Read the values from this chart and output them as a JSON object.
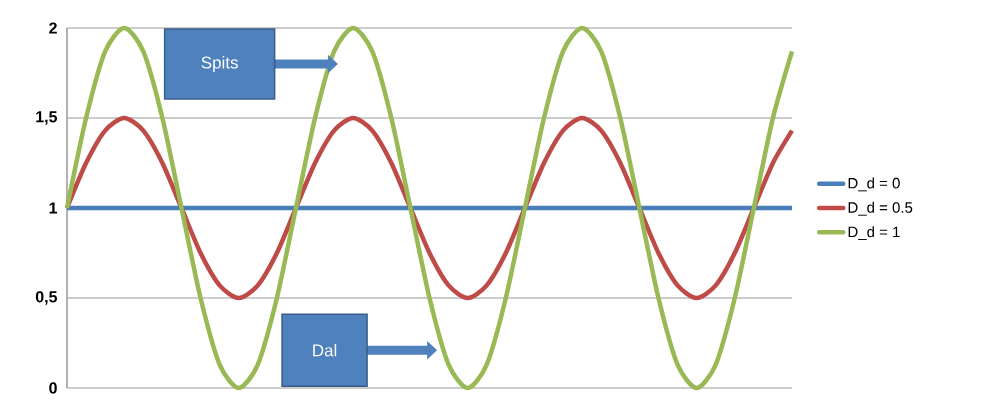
{
  "chart_data": {
    "type": "line",
    "categories": [
      null,
      null,
      null,
      null,
      null,
      null,
      null,
      null,
      null,
      null,
      null,
      null,
      null,
      null,
      null,
      null,
      null,
      null,
      null,
      null,
      null,
      null,
      null,
      null,
      null,
      null,
      null,
      null,
      null,
      null,
      null,
      null,
      null,
      null,
      null,
      null,
      null,
      null,
      null
    ],
    "ylim": [
      0,
      2
    ],
    "yticks": [
      0,
      {
        "value": 0.5,
        "label": "0,5"
      },
      1,
      {
        "value": 1.5,
        "label": "1,5"
      },
      2
    ],
    "grid": "y",
    "legend": "right",
    "marker": "none",
    "line_style": "solid",
    "tick_labels": "y",
    "annotations": [
      "Spits",
      "Dal"
    ],
    "series": [
      {
        "name": "D_d = 0",
        "color": "#4a7ebb",
        "values": [
          1,
          1,
          1,
          1,
          1,
          1,
          1,
          1,
          1,
          1,
          1,
          1,
          1,
          1,
          1,
          1,
          1,
          1,
          1,
          1,
          1,
          1,
          1,
          1,
          1,
          1,
          1,
          1,
          1,
          1,
          1,
          1,
          1,
          1,
          1,
          1,
          1,
          1,
          1
        ]
      },
      {
        "name": "D_d = 0.5",
        "color": "#be4b48",
        "values": [
          1,
          1.25,
          1.43,
          1.5,
          1.43,
          1.25,
          1,
          0.75,
          0.57,
          0.5,
          0.57,
          0.75,
          1,
          1.25,
          1.43,
          1.5,
          1.43,
          1.25,
          1,
          0.75,
          0.57,
          0.5,
          0.57,
          0.75,
          1,
          1.25,
          1.43,
          1.5,
          1.43,
          1.25,
          1,
          0.75,
          0.57,
          0.5,
          0.57,
          0.75,
          1,
          1.25,
          1.43
        ]
      },
      {
        "name": "D_d = 1",
        "color": "#98b954",
        "values": [
          1,
          1.5,
          1.87,
          2,
          1.87,
          1.5,
          1,
          0.5,
          0.13,
          0,
          0.13,
          0.5,
          1,
          1.5,
          1.87,
          2,
          1.87,
          1.5,
          1,
          0.5,
          0.13,
          0,
          0.13,
          0.5,
          1,
          1.5,
          1.87,
          2,
          1.87,
          1.5,
          1,
          0.5,
          0.13,
          0,
          0.13,
          0.5,
          1,
          1.5,
          1.87
        ]
      }
    ]
  }
}
